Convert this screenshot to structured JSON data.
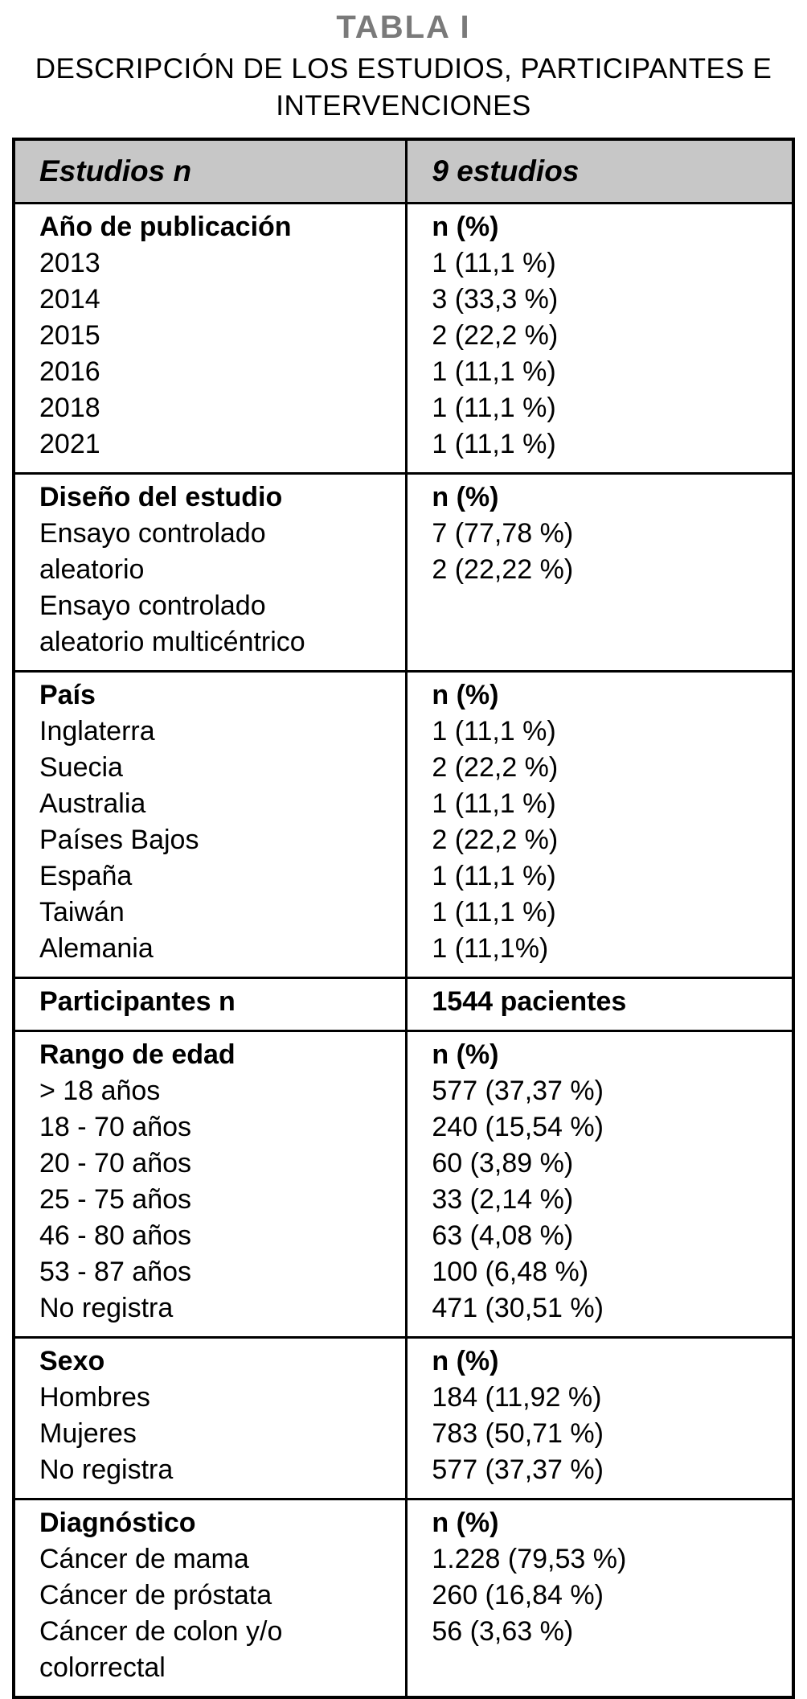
{
  "page": {
    "title": "TABLA I",
    "subtitle": "DESCRIPCIÓN DE LOS ESTUDIOS, PARTICIPANTES E INTERVENCIONES"
  },
  "colors": {
    "title": "#7a7a7a",
    "header_bg": "#c7c7c7",
    "border": "#000000",
    "text": "#000000"
  },
  "table": {
    "header": {
      "left": "Estudios n",
      "right": "9 estudios"
    },
    "sections": [
      {
        "name": "ano-de-publicacion",
        "left": [
          "Año de publicación",
          "2013",
          "2014",
          "2015",
          "2016",
          "2018",
          "2021"
        ],
        "right": [
          "n (%)",
          "1 (11,1 %)",
          "3 (33,3 %)",
          "2 (22,2 %)",
          "1 (11,1 %)",
          "1 (11,1 %)",
          "1 (11,1 %)"
        ]
      },
      {
        "name": "diseno-del-estudio",
        "left": [
          "Diseño del estudio",
          "Ensayo controlado",
          "aleatorio",
          "Ensayo controlado",
          "aleatorio multicéntrico"
        ],
        "right": [
          "n (%)",
          "7 (77,78 %)",
          "2 (22,22 %)"
        ]
      },
      {
        "name": "pais",
        "left": [
          "País",
          "Inglaterra",
          "Suecia",
          "Australia",
          "Países Bajos",
          "España",
          "Taiwán",
          "Alemania"
        ],
        "right": [
          "n (%)",
          "1 (11,1 %)",
          "2 (22,2 %)",
          "1 (11,1 %)",
          "2 (22,2 %)",
          "1 (11,1 %)",
          "1 (11,1 %)",
          "1 (11,1%)"
        ]
      },
      {
        "name": "participantes",
        "left": [
          "Participantes n"
        ],
        "right": [
          "1544 pacientes"
        ]
      },
      {
        "name": "rango-de-edad",
        "left": [
          "Rango de edad",
          "> 18 años",
          "18 - 70 años",
          "20 - 70 años",
          "25 - 75 años",
          "46 - 80 años",
          "53 - 87 años",
          "No registra"
        ],
        "right": [
          "n (%)",
          "577 (37,37 %)",
          "240 (15,54 %)",
          "60 (3,89 %)",
          "33 (2,14 %)",
          "63 (4,08 %)",
          "100 (6,48 %)",
          "471 (30,51 %)"
        ]
      },
      {
        "name": "sexo",
        "left": [
          "Sexo",
          "Hombres",
          "Mujeres",
          "No registra"
        ],
        "right": [
          "n (%)",
          "184 (11,92 %)",
          "783 (50,71 %)",
          "577 (37,37 %)"
        ]
      },
      {
        "name": "diagnostico",
        "left": [
          "Diagnóstico",
          "Cáncer de mama",
          "Cáncer de próstata",
          "Cáncer de colon y/o",
          "colorrectal"
        ],
        "right": [
          "n (%)",
          "1.228 (79,53 %)",
          "260 (16,84 %)",
          "56 (3,63 %)"
        ]
      }
    ]
  }
}
